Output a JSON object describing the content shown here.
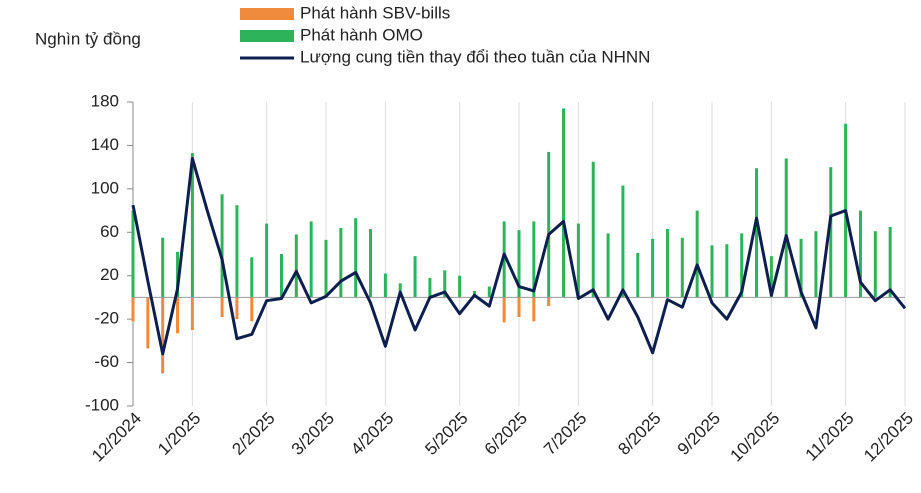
{
  "chart_data": {
    "type": "bar-line",
    "y_label": "Nghìn tỷ đồng",
    "categories": [
      "12/2024",
      null,
      null,
      null,
      "1/2025",
      null,
      null,
      null,
      null,
      "2/2025",
      null,
      null,
      null,
      "3/2025",
      null,
      null,
      null,
      "4/2025",
      null,
      null,
      null,
      null,
      "5/2025",
      null,
      null,
      null,
      "6/2025",
      null,
      null,
      null,
      "7/2025",
      null,
      null,
      null,
      null,
      "8/2025",
      null,
      null,
      null,
      "9/2025",
      null,
      null,
      null,
      "10/2025",
      null,
      null,
      null,
      null,
      "11/2025",
      null,
      null,
      null,
      "12/2025"
    ],
    "series": [
      {
        "name": "Phát hành SBV-bills",
        "kind": "bar",
        "color": "#f08a3c",
        "values": [
          -22,
          -47,
          -70,
          -33,
          -30,
          null,
          -18,
          -20,
          -22,
          null,
          null,
          null,
          null,
          null,
          null,
          null,
          null,
          null,
          null,
          null,
          null,
          null,
          null,
          null,
          null,
          -23,
          -18,
          -22,
          -8,
          null,
          null,
          null,
          null,
          null,
          null,
          null,
          null,
          null,
          null,
          null,
          null,
          null,
          null,
          null,
          null,
          null,
          null,
          null,
          null,
          null,
          null,
          null,
          null
        ]
      },
      {
        "name": "Phát hành OMO",
        "kind": "bar",
        "color": "#2db45a",
        "values": [
          80,
          null,
          55,
          42,
          133,
          null,
          95,
          85,
          37,
          68,
          40,
          58,
          70,
          53,
          64,
          73,
          63,
          22,
          13,
          38,
          18,
          25,
          20,
          6,
          10,
          70,
          62,
          70,
          134,
          174,
          68,
          125,
          59,
          103,
          41,
          54,
          63,
          55,
          80,
          48,
          49,
          59,
          119,
          38,
          128,
          54,
          61,
          120,
          160,
          80,
          61,
          65,
          null
        ]
      },
      {
        "name": "Lượng cung tiền thay đổi theo tuần của NHNN",
        "kind": "line",
        "color": "#0d1f4f",
        "values": [
          85,
          15,
          -52,
          8,
          128,
          80,
          35,
          -38,
          -34,
          -3,
          -1,
          24,
          -5,
          1,
          15,
          23,
          -5,
          -45,
          5,
          -30,
          0,
          5,
          -15,
          2,
          -8,
          40,
          10,
          6,
          58,
          70,
          -1,
          7,
          -20,
          7,
          -18,
          -51,
          -2,
          -9,
          30,
          -5,
          -20,
          5,
          73,
          2,
          57,
          5,
          -28,
          75,
          80,
          14,
          -3,
          7,
          -10
        ]
      }
    ],
    "ylim": [
      -100,
      180
    ],
    "yticks": [
      180,
      140,
      100,
      60,
      20,
      -20,
      -60,
      -100
    ],
    "grid": true
  }
}
